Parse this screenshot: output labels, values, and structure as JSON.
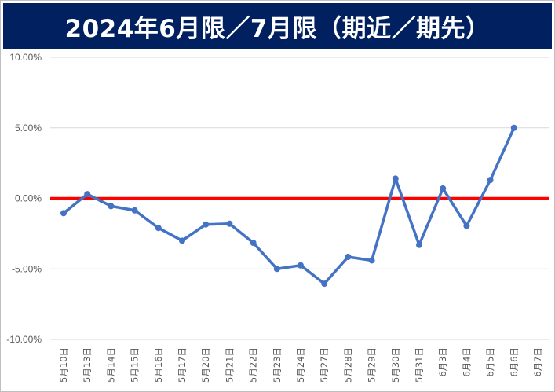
{
  "chart_data": {
    "type": "line",
    "title": "2024年6月限／7月限（期近／期先）",
    "xlabel": "",
    "ylabel": "",
    "categories": [
      "5月10日",
      "5月13日",
      "5月14日",
      "5月15日",
      "5月16日",
      "5月17日",
      "5月20日",
      "5月21日",
      "5月22日",
      "5月23日",
      "5月24日",
      "5月27日",
      "5月28日",
      "5月29日",
      "5月30日",
      "5月31日",
      "6月3日",
      "6月4日",
      "6月5日",
      "6月6日",
      "6月7日"
    ],
    "series": [
      {
        "values": [
          -1.05,
          0.3,
          -0.55,
          -0.85,
          -2.1,
          -3.0,
          -1.85,
          -1.8,
          -3.15,
          -5.0,
          -4.75,
          -6.05,
          -4.15,
          -4.4,
          1.4,
          -3.3,
          0.7,
          -1.95,
          1.3,
          5.0,
          null
        ],
        "color": "#4472c4"
      }
    ],
    "reference_line": {
      "value": 0.0,
      "color": "#ff0000"
    },
    "y_ticks": [
      "10.00%",
      "5.00%",
      "0.00%",
      "-5.00%",
      "-10.00%"
    ],
    "ylim": [
      -10,
      10
    ],
    "grid": true,
    "legend": "none",
    "colors": {
      "title_bg": "#002060",
      "title_fg": "#ffffff",
      "gridline": "#d9d9d9",
      "axis_text": "#595959"
    }
  }
}
